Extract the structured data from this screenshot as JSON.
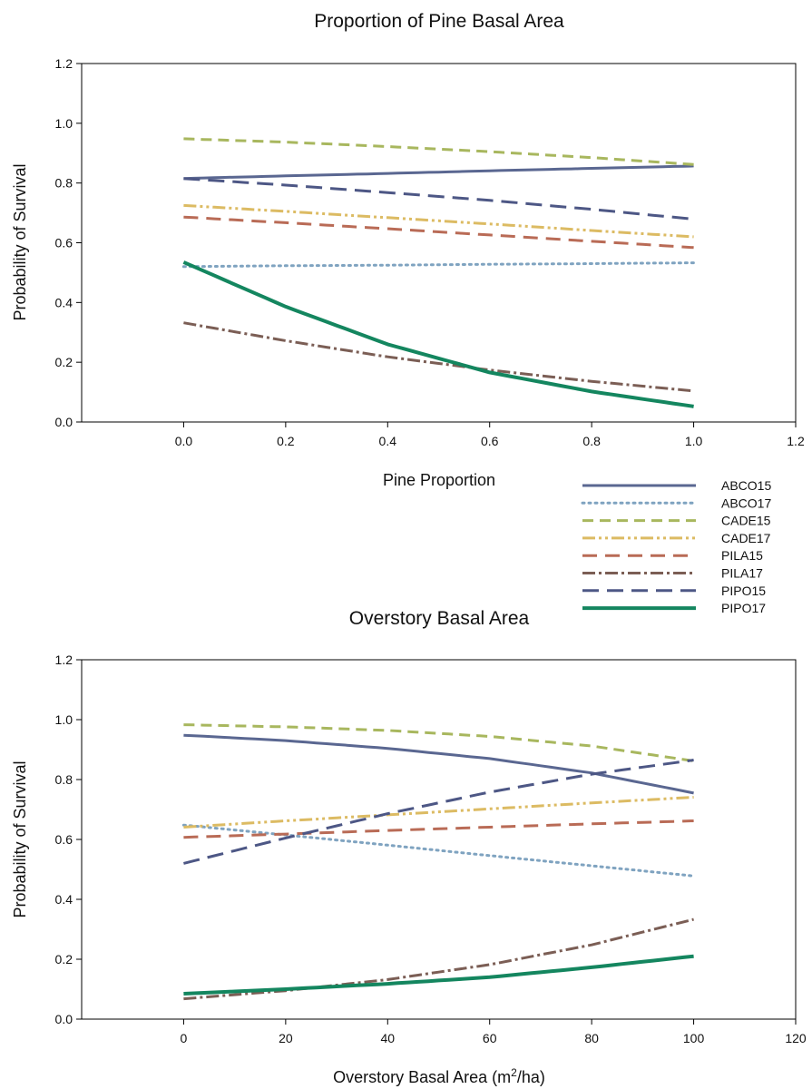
{
  "styles": {
    "ABCO15": {
      "color": "#5a6791",
      "dash": "",
      "width": 3
    },
    "ABCO17": {
      "color": "#7fa3c0",
      "dash": "2 5",
      "width": 3,
      "cap": "round"
    },
    "CADE15": {
      "color": "#a8b75e",
      "dash": "12 7",
      "width": 3
    },
    "CADE17": {
      "color": "#dcbb63",
      "dash": "14 4 3 4 3 4",
      "width": 3
    },
    "PILA15": {
      "color": "#b96b56",
      "dash": "16 9",
      "width": 3
    },
    "PILA17": {
      "color": "#7b5e55",
      "dash": "14 4 3 4",
      "width": 3
    },
    "PIPO15": {
      "color": "#4d5785",
      "dash": "18 9",
      "width": 3
    },
    "PIPO17": {
      "color": "#14865f",
      "dash": "",
      "width": 4
    }
  },
  "legend": {
    "entries": [
      "ABCO15",
      "ABCO17",
      "CADE15",
      "CADE17",
      "PILA15",
      "PILA17",
      "PIPO15",
      "PIPO17"
    ]
  },
  "chart_data": [
    {
      "type": "line",
      "title": "Proportion of Pine Basal Area",
      "xlabel": "Pine Proportion",
      "ylabel": "Probability of Survival",
      "xlim": [
        -0.2,
        1.2
      ],
      "ylim": [
        0,
        1.2
      ],
      "xticks": [
        0.0,
        0.2,
        0.4,
        0.6,
        0.8,
        1.0,
        1.2
      ],
      "xtick_labels": [
        "0.0",
        "0.2",
        "0.4",
        "0.6",
        "0.8",
        "1.0",
        "1.2"
      ],
      "yticks": [
        0.0,
        0.2,
        0.4,
        0.6,
        0.8,
        1.0,
        1.2
      ],
      "ytick_labels": [
        "0.0",
        "0.2",
        "0.4",
        "0.6",
        "0.8",
        "1.0",
        "1.2"
      ],
      "grid": false,
      "x": [
        0,
        0.2,
        0.4,
        0.6,
        0.8,
        1.0
      ],
      "series": [
        {
          "name": "ABCO15",
          "values": [
            0.815,
            0.824,
            0.832,
            0.841,
            0.849,
            0.857
          ]
        },
        {
          "name": "ABCO17",
          "values": [
            0.52,
            0.523,
            0.525,
            0.528,
            0.53,
            0.533
          ]
        },
        {
          "name": "CADE15",
          "values": [
            0.948,
            0.937,
            0.922,
            0.905,
            0.885,
            0.862
          ]
        },
        {
          "name": "CADE17",
          "values": [
            0.725,
            0.705,
            0.684,
            0.663,
            0.641,
            0.62
          ]
        },
        {
          "name": "PILA15",
          "values": [
            0.686,
            0.667,
            0.647,
            0.626,
            0.605,
            0.584
          ]
        },
        {
          "name": "PILA17",
          "values": [
            0.332,
            0.272,
            0.218,
            0.174,
            0.136,
            0.104
          ]
        },
        {
          "name": "PIPO15",
          "values": [
            0.815,
            0.793,
            0.768,
            0.742,
            0.712,
            0.679
          ]
        },
        {
          "name": "PIPO17",
          "values": [
            0.535,
            0.386,
            0.26,
            0.166,
            0.102,
            0.052
          ]
        }
      ]
    },
    {
      "type": "line",
      "title": "Overstory Basal Area",
      "xlabel": "Overstory Basal Area (m",
      "xlabel_sup": "2",
      "xlabel_suffix": "/ha)",
      "ylabel": "Probability of Survival",
      "xlim": [
        -20,
        120
      ],
      "ylim": [
        0,
        1.2
      ],
      "xticks": [
        0,
        20,
        40,
        60,
        80,
        100,
        120
      ],
      "xtick_labels": [
        "0",
        "20",
        "40",
        "60",
        "80",
        "100",
        "120"
      ],
      "yticks": [
        0.0,
        0.2,
        0.4,
        0.6,
        0.8,
        1.0,
        1.2
      ],
      "ytick_labels": [
        "0.0",
        "0.2",
        "0.4",
        "0.6",
        "0.8",
        "1.0",
        "1.2"
      ],
      "grid": false,
      "x": [
        0,
        20,
        40,
        60,
        80,
        100
      ],
      "series": [
        {
          "name": "ABCO15",
          "values": [
            0.948,
            0.93,
            0.904,
            0.87,
            0.822,
            0.755
          ]
        },
        {
          "name": "ABCO17",
          "values": [
            0.648,
            0.615,
            0.581,
            0.546,
            0.512,
            0.478
          ]
        },
        {
          "name": "CADE15",
          "values": [
            0.983,
            0.976,
            0.964,
            0.944,
            0.912,
            0.862
          ]
        },
        {
          "name": "CADE17",
          "values": [
            0.641,
            0.662,
            0.682,
            0.702,
            0.722,
            0.741
          ]
        },
        {
          "name": "PILA15",
          "values": [
            0.607,
            0.618,
            0.63,
            0.641,
            0.652,
            0.662
          ]
        },
        {
          "name": "PILA17",
          "values": [
            0.068,
            0.095,
            0.132,
            0.182,
            0.248,
            0.333
          ]
        },
        {
          "name": "PIPO15",
          "values": [
            0.52,
            0.605,
            0.686,
            0.758,
            0.818,
            0.865
          ]
        },
        {
          "name": "PIPO17",
          "values": [
            0.085,
            0.1,
            0.118,
            0.14,
            0.173,
            0.21
          ]
        }
      ]
    }
  ]
}
